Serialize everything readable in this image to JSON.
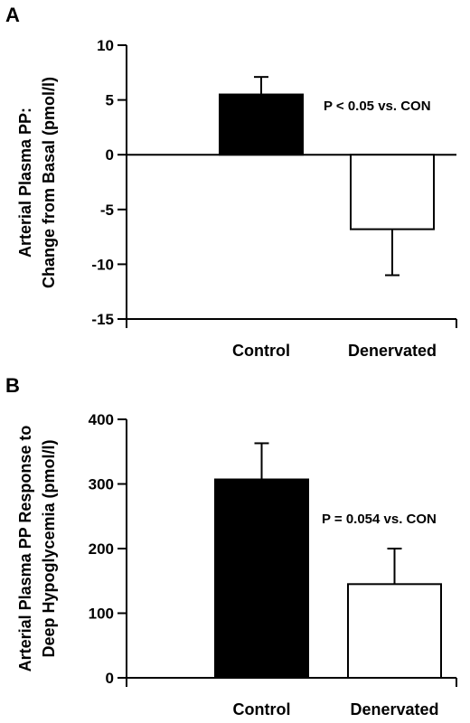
{
  "chart_data": [
    {
      "type": "bar",
      "panel_label": "A",
      "ylabel_lines": [
        "Arterial Plasma PP:",
        "Change from Basal (pmol/l)"
      ],
      "categories": [
        "Control",
        "Denervated"
      ],
      "values": [
        5.5,
        -6.8
      ],
      "errors": [
        1.6,
        4.2
      ],
      "bar_colors": [
        "#000000",
        "#ffffff"
      ],
      "ylim": [
        -15,
        10
      ],
      "yticks": [
        10,
        5,
        0,
        -5,
        -10,
        -15
      ],
      "zero_line": true,
      "annotation": "P < 0.05 vs. CON",
      "grid": false
    },
    {
      "type": "bar",
      "panel_label": "B",
      "ylabel_lines": [
        "Arterial Plasma PP Response to",
        "Deep Hypoglycemia (pmol/l)"
      ],
      "categories": [
        "Control",
        "Denervated"
      ],
      "values": [
        307,
        145
      ],
      "errors": [
        56,
        55
      ],
      "bar_colors": [
        "#000000",
        "#ffffff"
      ],
      "ylim": [
        0,
        400
      ],
      "yticks": [
        400,
        300,
        200,
        100,
        0
      ],
      "zero_line": false,
      "annotation": "P = 0.054 vs. CON",
      "grid": false
    }
  ]
}
